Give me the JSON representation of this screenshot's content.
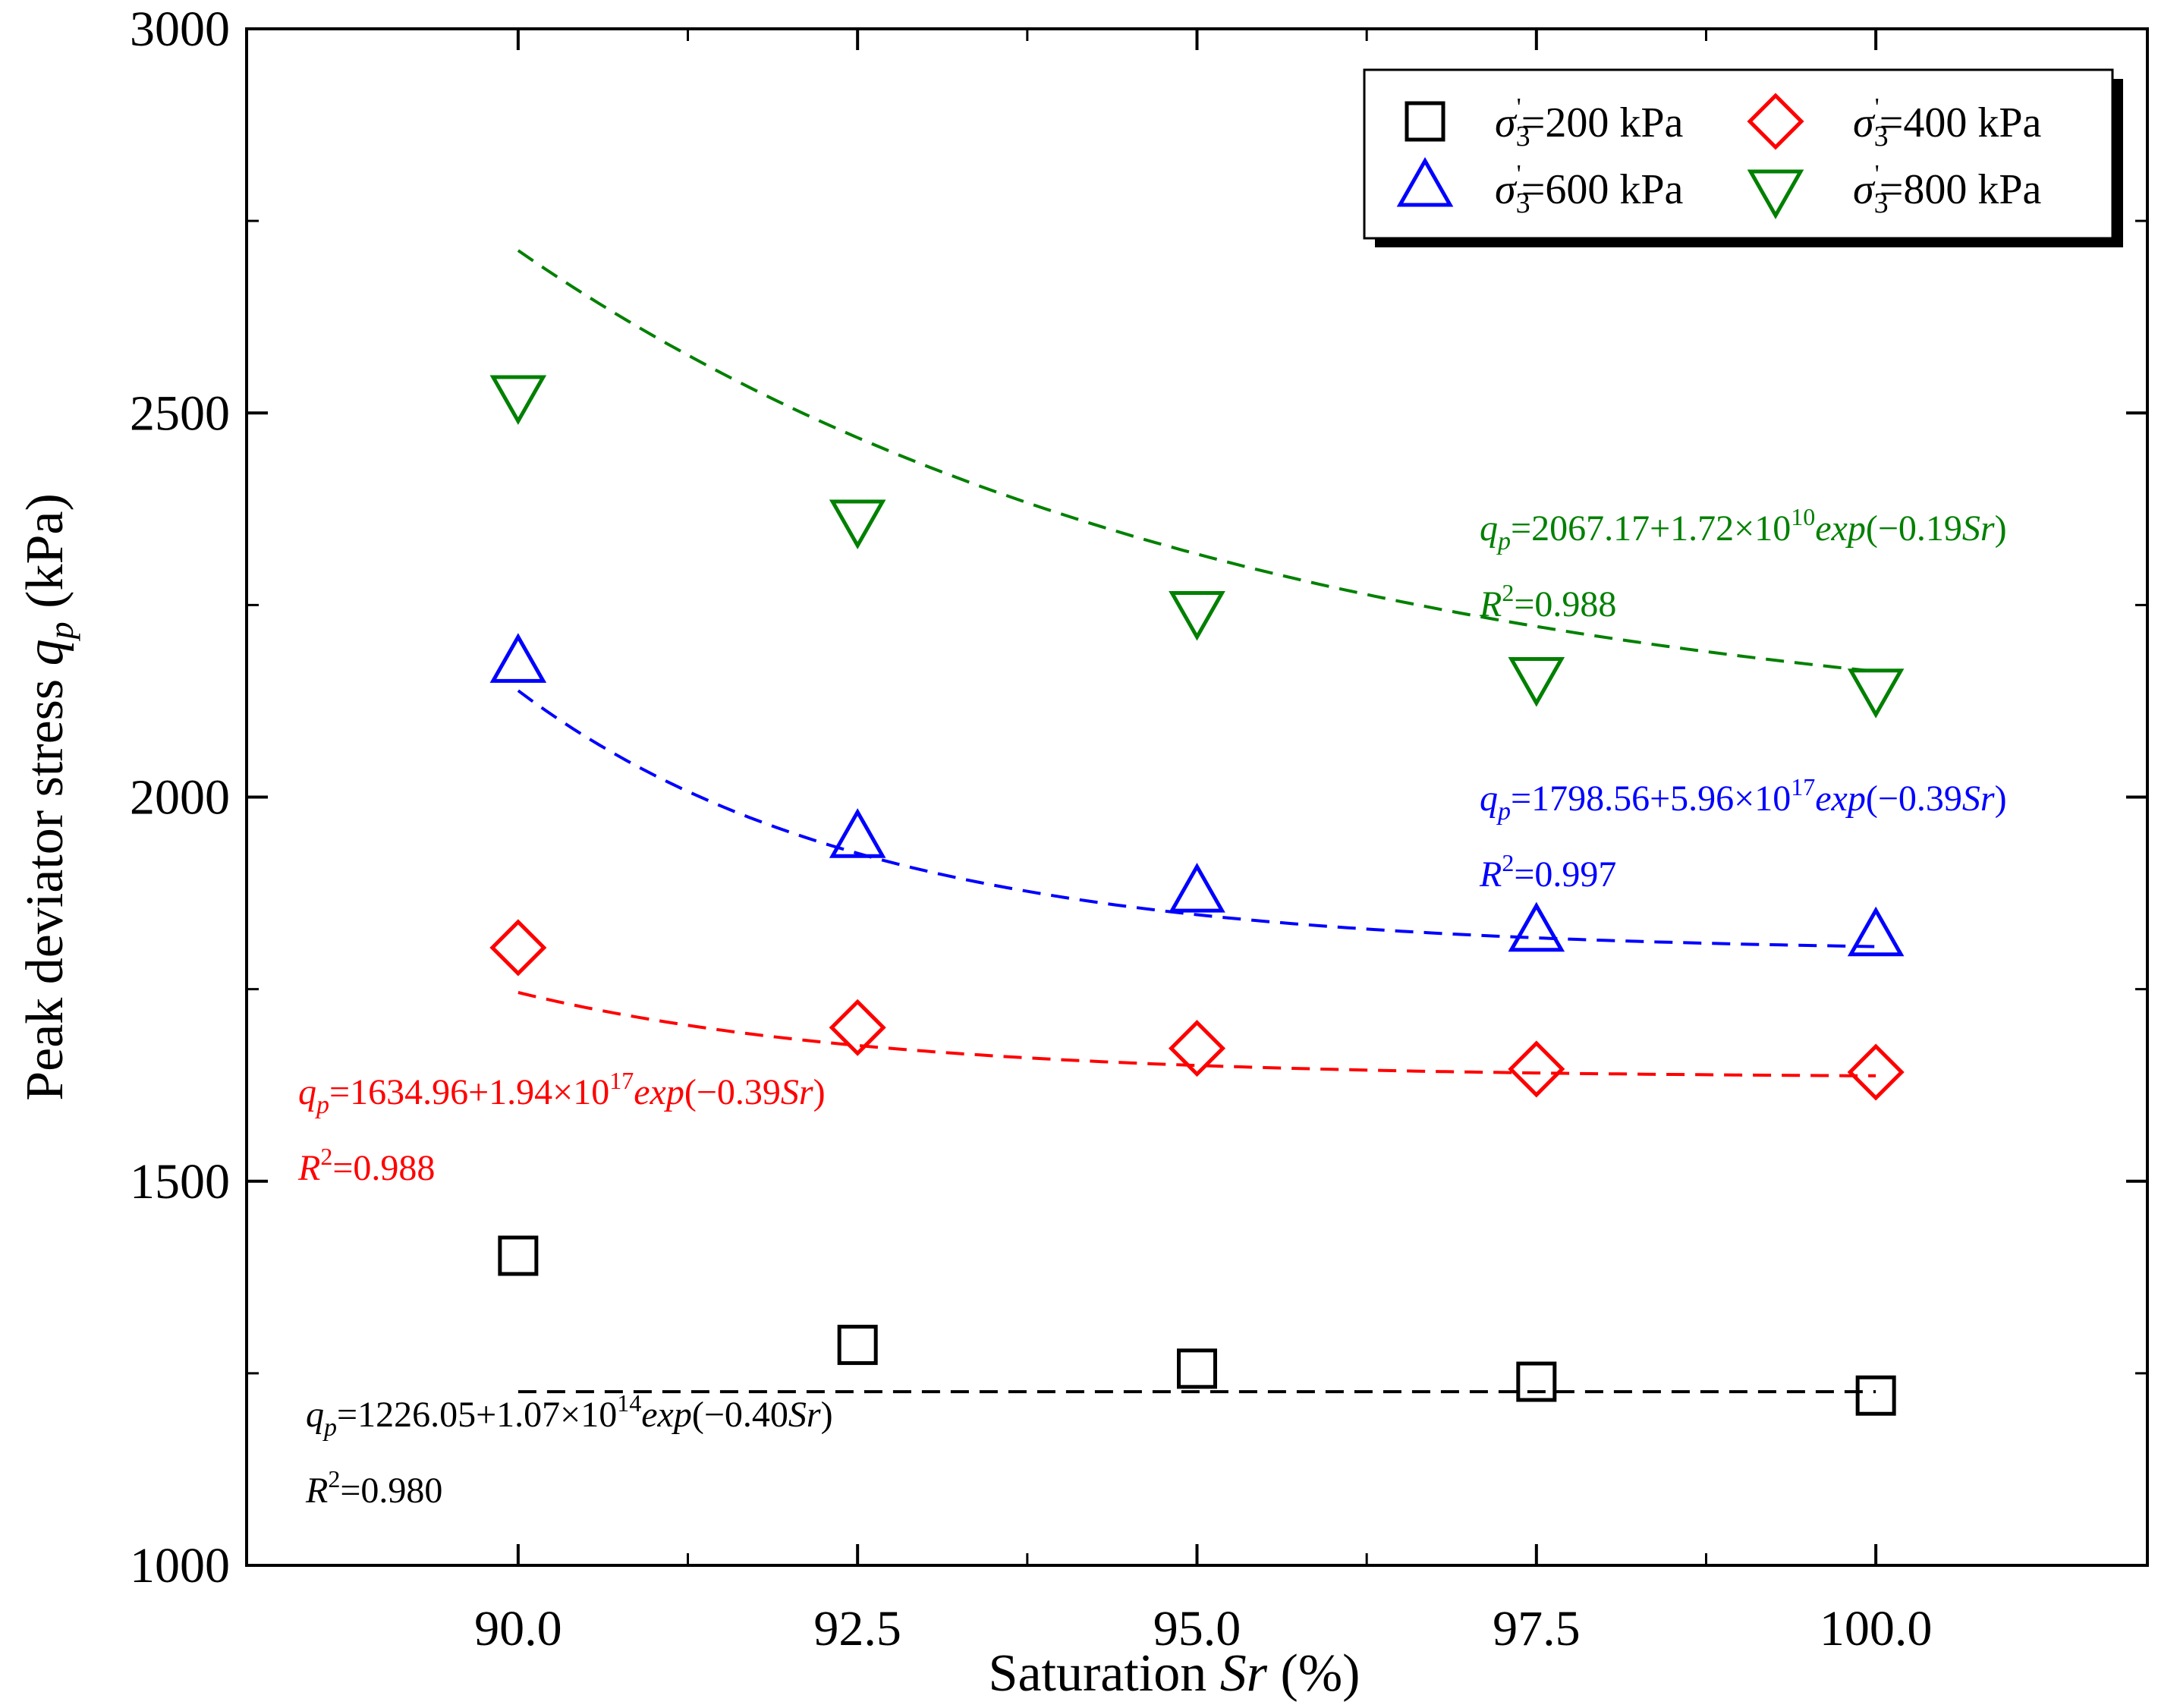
{
  "chart_data": {
    "type": "scatter",
    "xlabel": "Saturation Sr (%)",
    "ylabel": "Peak deviator stress qp (kPa)",
    "xlim": [
      88.0,
      102.0
    ],
    "ylim": [
      1000,
      3000
    ],
    "xticks": [
      90.0,
      92.5,
      95.0,
      97.5,
      100.0
    ],
    "xtick_labels": [
      "90.0",
      "92.5",
      "95.0",
      "97.5",
      "100.0"
    ],
    "yticks": [
      1000,
      1500,
      2000,
      2500,
      3000
    ],
    "ytick_labels": [
      "1000",
      "1500",
      "2000",
      "2500",
      "3000"
    ],
    "legend_position": "top-right",
    "grid": false,
    "series": [
      {
        "name": "σ3'=200 kPa",
        "marker": "square",
        "color": "#000000",
        "x": [
          90.0,
          92.5,
          95.0,
          97.5,
          100.0
        ],
        "y": [
          1403,
          1287,
          1256,
          1239,
          1221
        ],
        "fit": {
          "a": 1226.05,
          "b": 107000000000000.0,
          "c": -0.4
        },
        "equation": {
          "lhs": "q",
          "lhs_sub": "p",
          "main": "=1226.05+1.07×10",
          "exp": "14",
          "func": "exp",
          "arg": "(−0.40Sr)",
          "r2": "=0.980"
        }
      },
      {
        "name": "σ3'=400 kPa",
        "marker": "diamond",
        "color": "#ff0000",
        "x": [
          90.0,
          92.5,
          95.0,
          97.5,
          100.0
        ],
        "y": [
          1804,
          1700,
          1673,
          1646,
          1642
        ],
        "fit": {
          "a": 1634.96,
          "b": 1.94e+17,
          "c": -0.39
        },
        "equation": {
          "lhs": "q",
          "lhs_sub": "p",
          "main": "=1634.96+1.94×10",
          "exp": "17",
          "func": "exp",
          "arg": "(−0.39Sr)",
          "r2": "=0.988"
        }
      },
      {
        "name": "σ3'=600 kPa",
        "marker": "triangle-up",
        "color": "#0000ff",
        "x": [
          90.0,
          92.5,
          95.0,
          97.5,
          100.0
        ],
        "y": [
          2173,
          1945,
          1874,
          1823,
          1817
        ],
        "fit": {
          "a": 1798.56,
          "b": 5.96e+17,
          "c": -0.39
        },
        "equation": {
          "lhs": "q",
          "lhs_sub": "p",
          "main": "=1798.56+5.96×10",
          "exp": "17",
          "func": "exp",
          "arg": "(−0.39Sr)",
          "r2": "=0.997"
        }
      },
      {
        "name": "σ3'=800 kPa",
        "marker": "triangle-down",
        "color": "#008000",
        "x": [
          90.0,
          92.5,
          95.0,
          97.5,
          100.0
        ],
        "y": [
          2525,
          2363,
          2244,
          2158,
          2143
        ],
        "fit": {
          "a": 2067.17,
          "b": 17200000000.0,
          "c": -0.19
        },
        "equation": {
          "lhs": "q",
          "lhs_sub": "p",
          "main": "=2067.17+1.72×10",
          "exp": "10",
          "func": "exp",
          "arg": "(−0.19Sr)",
          "r2": "=0.988"
        }
      }
    ]
  }
}
